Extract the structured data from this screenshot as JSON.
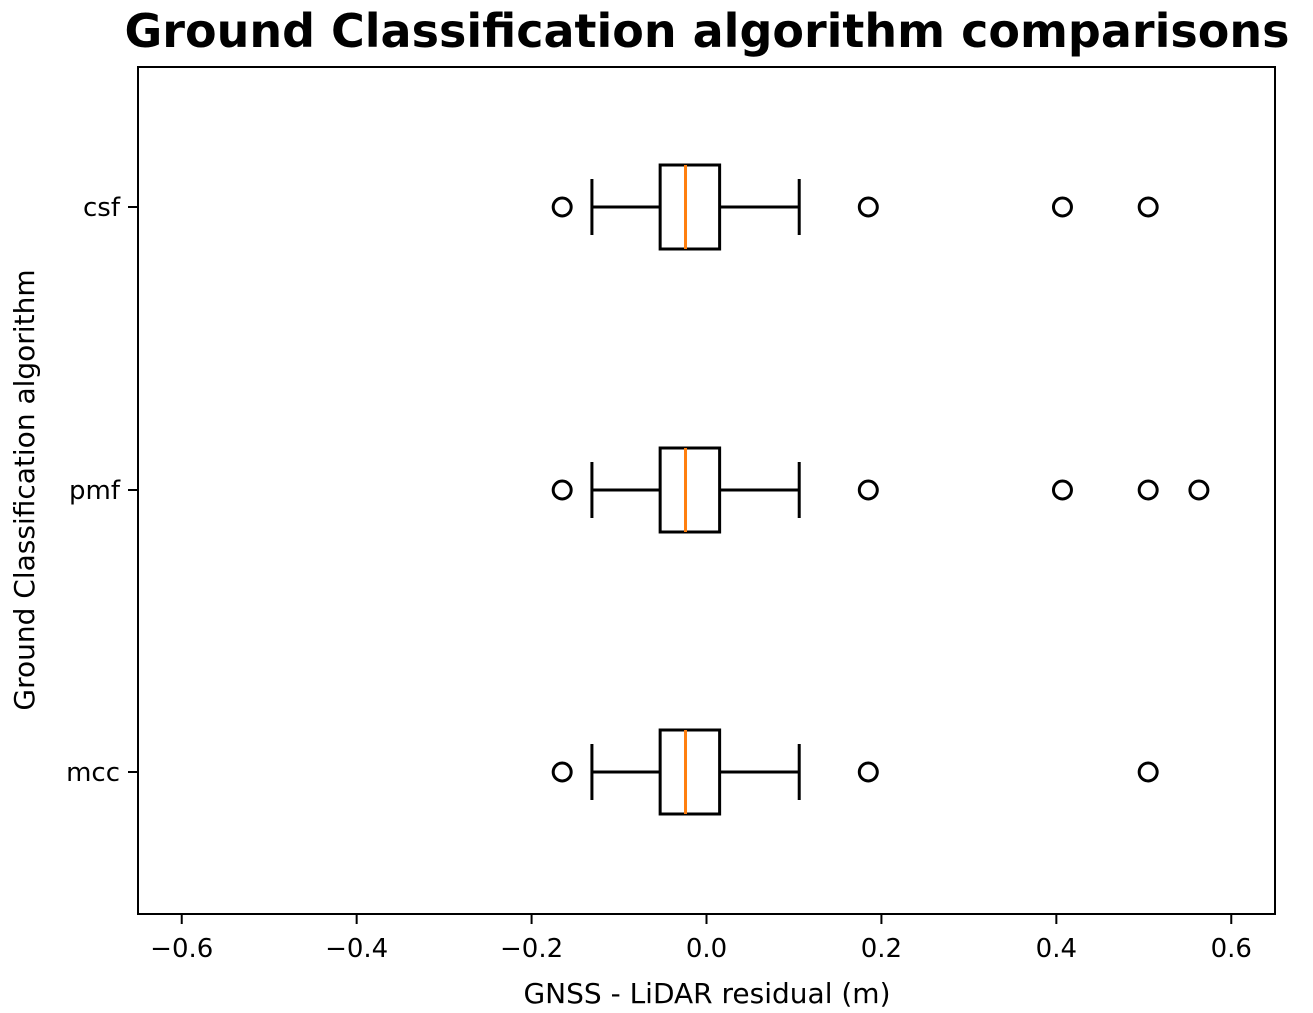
{
  "chart_data": {
    "type": "boxplot",
    "orientation": "horizontal",
    "title": "Ground Classification algorithm comparisons",
    "xlabel": "GNSS - LiDAR residual (m)",
    "ylabel": "Ground Classification algorithm",
    "xlim": [
      -0.65,
      0.65
    ],
    "xticks": [
      -0.6,
      -0.4,
      -0.2,
      0.0,
      0.2,
      0.4,
      0.6
    ],
    "xtick_labels": [
      "−0.6",
      "−0.4",
      "−0.2",
      "0.0",
      "0.2",
      "0.4",
      "0.6"
    ],
    "categories": [
      "csf",
      "pmf",
      "mcc"
    ],
    "series": [
      {
        "category": "csf",
        "whisker_low": -0.131,
        "q1": -0.053,
        "median": -0.024,
        "q3": 0.015,
        "whisker_high": 0.106,
        "outliers": [
          -0.165,
          0.185,
          0.407,
          0.505
        ]
      },
      {
        "category": "pmf",
        "whisker_low": -0.131,
        "q1": -0.053,
        "median": -0.024,
        "q3": 0.015,
        "whisker_high": 0.106,
        "outliers": [
          -0.165,
          0.185,
          0.407,
          0.505,
          0.563
        ]
      },
      {
        "category": "mcc",
        "whisker_low": -0.131,
        "q1": -0.053,
        "median": -0.024,
        "q3": 0.015,
        "whisker_high": 0.106,
        "outliers": [
          -0.165,
          0.185,
          0.505
        ]
      }
    ],
    "colors": {
      "box": "#000000",
      "median": "#ff7f0e",
      "outlier": "#000000"
    },
    "grid": false,
    "legend": "none"
  }
}
